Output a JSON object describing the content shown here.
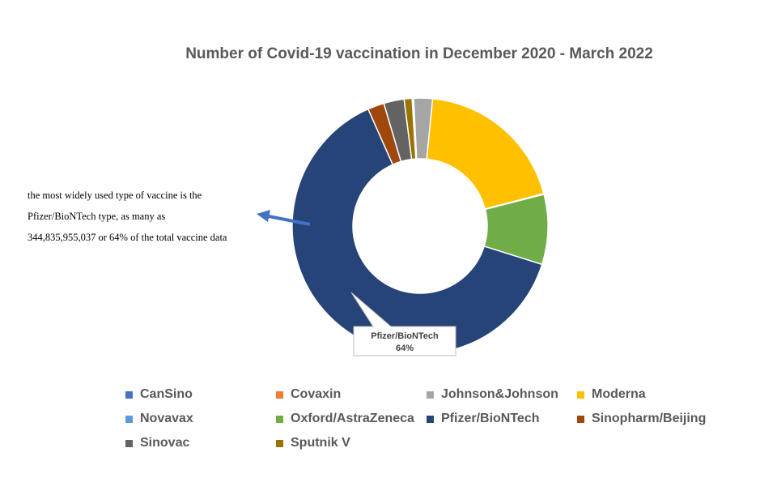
{
  "chart_data": {
    "type": "pie",
    "variant": "donut",
    "title": "Number of Covid-19 vaccination in December 2020 - March 2022",
    "categories": [
      "CanSino",
      "Covaxin",
      "Johnson&Johnson",
      "Moderna",
      "Novavax",
      "Oxford/AstraZeneca",
      "Pfizer/BioNTech",
      "Sinopharm/Beijing",
      "Sinovac",
      "Sputnik V"
    ],
    "values": [
      0.1,
      0.1,
      2.4,
      19.5,
      0.1,
      8.9,
      64,
      2.1,
      2.6,
      1.0
    ],
    "unit": "%",
    "colors": [
      "#4472c4",
      "#ed7d31",
      "#a5a5a5",
      "#ffc000",
      "#5b9bd5",
      "#70ad47",
      "#264478",
      "#9e480e",
      "#636363",
      "#997300"
    ],
    "data_labels": [
      {
        "category": "Pfizer/BioNTech",
        "name": "Pfizer/BioNTech",
        "value": "64%"
      }
    ],
    "legend_position": "bottom"
  },
  "annotation": {
    "lines": [
      "the most widely used type of vaccine is the",
      "Pfizer/BioNTech type, as many as",
      "344,835,955,037 or 64% of the total vaccine data"
    ],
    "arrow_color": "#4472c4"
  }
}
